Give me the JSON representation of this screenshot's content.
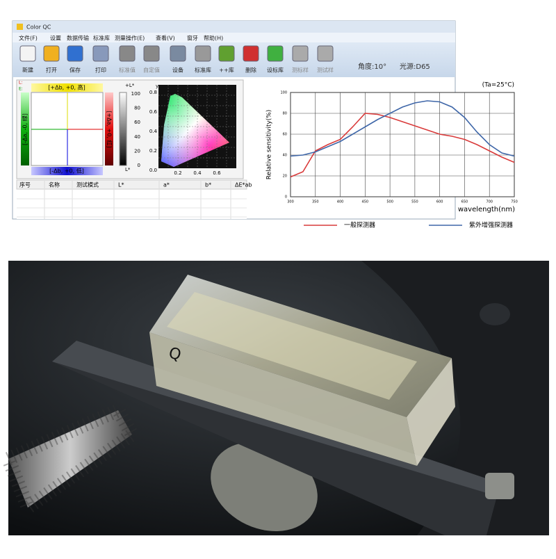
{
  "window": {
    "title": "Color QC",
    "menu": [
      "文件(F)",
      "设置",
      "数据传输",
      "标准库",
      "测量操作(E)",
      "查看(V)",
      "窗牙",
      "帮助(H)"
    ],
    "toolbar": [
      "新建",
      "打开",
      "保存",
      "打印",
      "标准值",
      "自定值",
      "设备",
      "标准库",
      "++库",
      "删除",
      "设标库",
      "测标样",
      "测试样"
    ],
    "status": [
      "角度:10°",
      "光源:D65"
    ]
  },
  "panels": {
    "indicators": [
      "L:",
      "E:"
    ],
    "difference": {
      "top": "[+Δb, +0, 高]",
      "bottom": "[-Δb, +0, 低]",
      "left": "[-Δa, -0, 绿]",
      "right": "[+Δa, +0, 红]"
    },
    "lightness": {
      "top": "+L*",
      "bottom": "L*",
      "ticks": [
        "100",
        "80",
        "60",
        "40",
        "20",
        "0"
      ]
    },
    "cie": {
      "y_label": "y",
      "yticks": [
        "0.8",
        "0.6",
        "0.4",
        "0.2",
        "0.0"
      ],
      "xticks": [
        "0.2",
        "0.4",
        "0.6"
      ]
    }
  },
  "table": {
    "columns": [
      "序号",
      "名称",
      "测试模式",
      "L*",
      "a*",
      "b*",
      "ΔE*ab"
    ]
  },
  "chart_data": {
    "type": "line",
    "title": "(Ta=25°C)",
    "x_label": "wavelength(nm)",
    "y_label": "Relative sensitivity(%)",
    "x": [
      300,
      325,
      350,
      375,
      400,
      425,
      450,
      475,
      500,
      525,
      550,
      575,
      600,
      625,
      650,
      675,
      700,
      725,
      750
    ],
    "series": [
      {
        "name": "一般探测器",
        "color": "#d93a3a",
        "values": [
          19,
          24,
          44,
          50,
          55,
          67,
          80,
          79,
          76,
          72,
          68,
          64,
          60,
          58,
          55,
          50,
          44,
          38,
          33
        ]
      },
      {
        "name": "紫外增强探测器",
        "color": "#3e66a8",
        "values": [
          39,
          40,
          43,
          48,
          53,
          60,
          67,
          74,
          80,
          86,
          90,
          92,
          91,
          86,
          76,
          62,
          50,
          42,
          39
        ]
      }
    ],
    "xlim": [
      300,
      750
    ],
    "ylim": [
      0,
      100
    ],
    "xticks": [
      300,
      350,
      400,
      450,
      500,
      550,
      600,
      650,
      700,
      750
    ],
    "yticks": [
      0,
      20,
      40,
      60,
      80,
      100
    ],
    "grid": true
  },
  "photo": {
    "cuvette_mark": "Q"
  }
}
